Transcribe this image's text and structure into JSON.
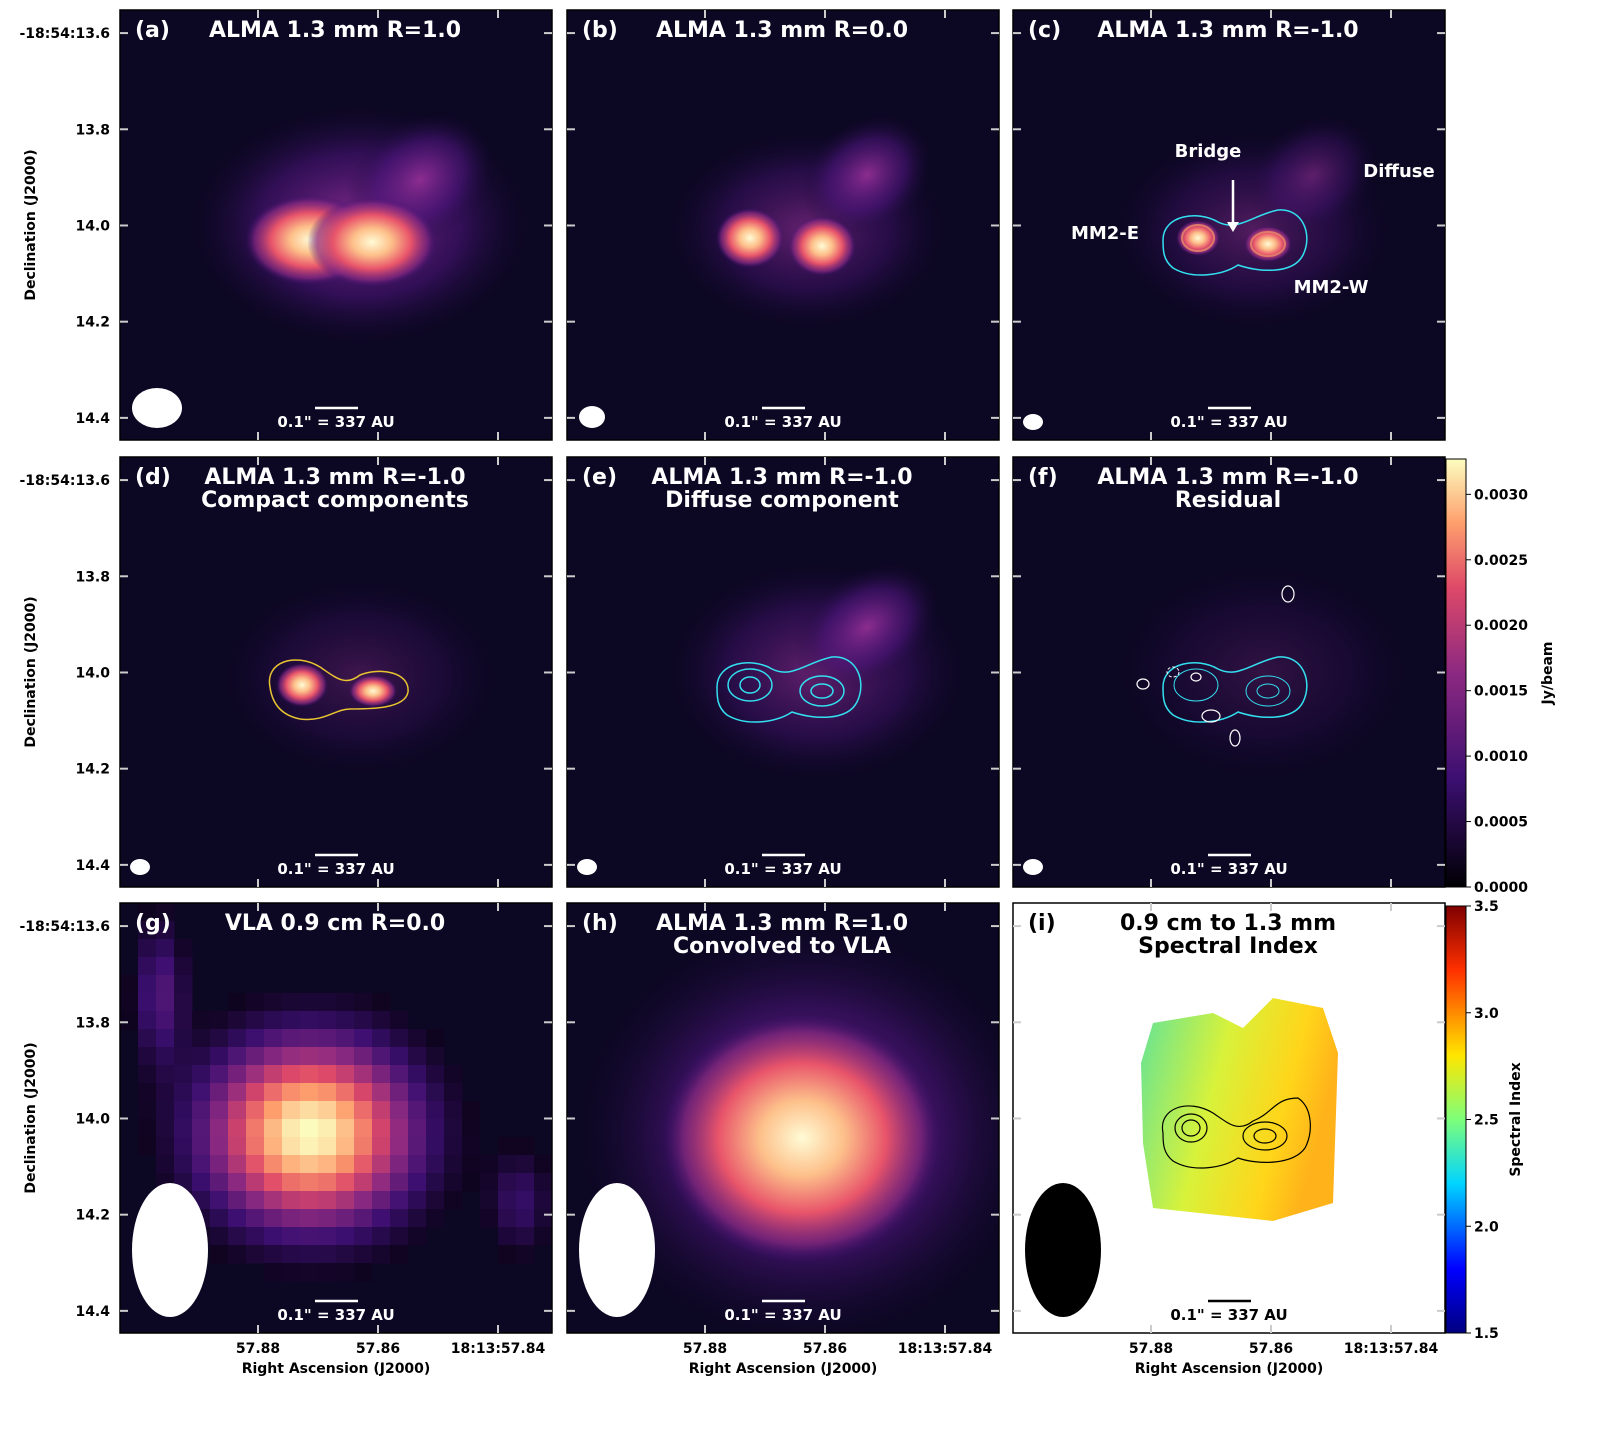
{
  "chart_data": {
    "type": "image-grid",
    "xlabel": "Right Ascension (J2000)",
    "ylabel": "Declination (J2000)",
    "xlim": [
      57.903,
      57.831
    ],
    "ylim": [
      13.552,
      14.446
    ],
    "y_inverted": true,
    "xticks": [
      57.88,
      57.86,
      {
        "value": 57.84,
        "label": "18:13:57.84"
      }
    ],
    "yticks": [
      {
        "value": 13.6,
        "label": "-18:54:13.6"
      },
      13.8,
      {
        "value": 14.0,
        "label": "14.0"
      },
      14.2,
      14.4
    ],
    "panels": [
      {
        "label": "(a)",
        "title": "ALMA 1.3 mm R=1.0",
        "scale_bar": "0.1\" = 337 AU"
      },
      {
        "label": "(b)",
        "title": "ALMA 1.3 mm R=0.0",
        "scale_bar": "0.1\" = 337 AU"
      },
      {
        "label": "(c)",
        "title": "ALMA 1.3 mm R=-1.0",
        "scale_bar": "0.1\" = 337 AU",
        "annotations": [
          "Bridge",
          "Diffuse",
          "MM2-E",
          "MM2-W"
        ]
      },
      {
        "label": "(d)",
        "title": "ALMA 1.3 mm R=-1.0",
        "subtitle": "Compact components",
        "scale_bar": "0.1\" = 337 AU"
      },
      {
        "label": "(e)",
        "title": "ALMA 1.3 mm R=-1.0",
        "subtitle": "Diffuse component",
        "scale_bar": "0.1\" = 337 AU"
      },
      {
        "label": "(f)",
        "title": "ALMA 1.3 mm R=-1.0",
        "subtitle": "Residual",
        "scale_bar": "0.1\" = 337 AU"
      },
      {
        "label": "(g)",
        "title": "VLA 0.9 cm R=0.0",
        "scale_bar": "0.1\" = 337 AU"
      },
      {
        "label": "(h)",
        "title": "ALMA 1.3 mm R=1.0",
        "subtitle": "Convolved to VLA",
        "scale_bar": "0.1\" = 337 AU"
      },
      {
        "label": "(i)",
        "title": "0.9 cm to 1.3 mm",
        "subtitle": "Spectral Index",
        "scale_bar": "0.1\" = 337 AU"
      }
    ],
    "colorbars": [
      {
        "label": "Jy/beam",
        "ylim": [
          0,
          0.00327
        ],
        "yticks": [
          {
            "value": 0,
            "label": "0.0000"
          },
          {
            "value": 0.0005,
            "label": "0.0005"
          },
          {
            "value": 0.001,
            "label": "0.0010"
          },
          {
            "value": 0.0015,
            "label": "0.0015"
          },
          {
            "value": 0.002,
            "label": "0.0020"
          },
          {
            "value": 0.0025,
            "label": "0.0025"
          },
          {
            "value": 0.003,
            "label": "0.0030"
          }
        ]
      },
      {
        "label": "Spectral Index",
        "ylim": [
          1.5,
          3.5
        ],
        "yticks": [
          {
            "value": 1.5,
            "label": "1.5"
          },
          {
            "value": 2.0,
            "label": "2.0"
          },
          {
            "value": 2.5,
            "label": "2.5"
          },
          {
            "value": 3.0,
            "label": "3.0"
          },
          {
            "value": 3.5,
            "label": "3.5"
          }
        ]
      }
    ]
  }
}
